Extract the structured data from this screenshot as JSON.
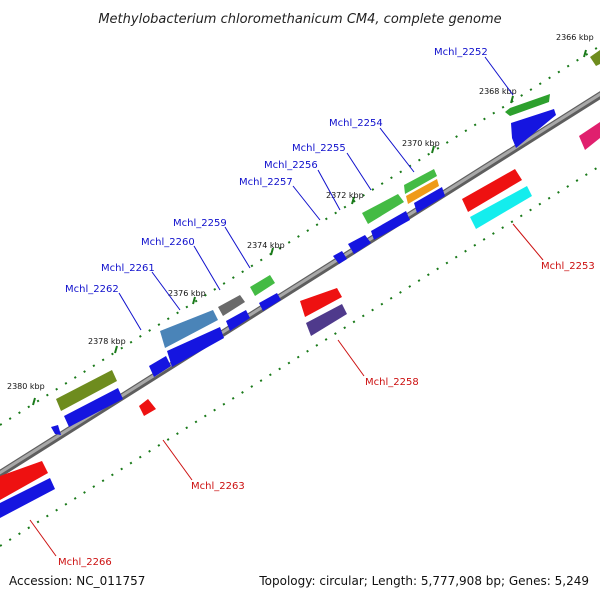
{
  "title": "Methylobacterium chloromethanicum CM4, complete genome",
  "footer": {
    "accession": "Accession: NC_011757",
    "meta": "Topology: circular; Length: 5,777,908 bp; Genes: 5,249"
  },
  "colors": {
    "forward_label": "#1010cc",
    "reverse_label": "#cc1010",
    "backbone": "#8a8a8a",
    "tick": "#1a7a1a"
  },
  "ticks": [
    "2366 kbp",
    "2368 kbp",
    "2370 kbp",
    "2372 kbp",
    "2374 kbp",
    "2376 kbp",
    "2378 kbp",
    "2380 kbp"
  ],
  "forward_genes": [
    "Mchl_2252",
    "Mchl_2254",
    "Mchl_2255",
    "Mchl_2256",
    "Mchl_2257",
    "Mchl_2259",
    "Mchl_2260",
    "Mchl_2261",
    "Mchl_2262"
  ],
  "reverse_genes": [
    "Mchl_2253",
    "Mchl_2258",
    "Mchl_2263",
    "Mchl_2266"
  ]
}
